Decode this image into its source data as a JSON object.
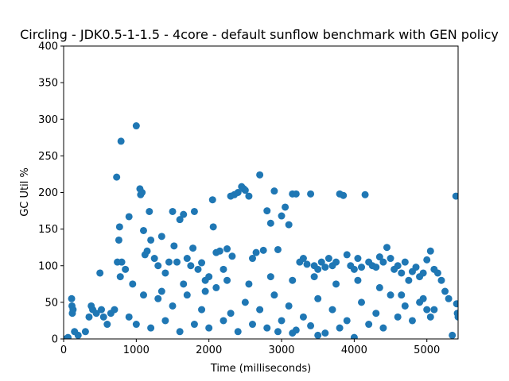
{
  "chart_data": {
    "type": "scatter",
    "title": "Circling - JDK0.5-1-1.5 - 4core -  default sunflow benchmark with GEN policy",
    "xlabel": "Time (milliseconds)",
    "ylabel": "GC Util %",
    "xlim": [
      0,
      5430
    ],
    "ylim": [
      0,
      400
    ],
    "x_ticks": [
      "0",
      "1000",
      "2000",
      "3000",
      "4000",
      "5000"
    ],
    "y_ticks": [
      "0",
      "50",
      "100",
      "150",
      "200",
      "250",
      "300",
      "350",
      "400"
    ],
    "grid": false,
    "legend": "none",
    "color": "#1f77b4",
    "series": [
      {
        "points": [
          [
            0,
            0
          ],
          [
            60,
            2
          ],
          [
            110,
            55
          ],
          [
            115,
            45
          ],
          [
            120,
            35
          ],
          [
            130,
            40
          ],
          [
            150,
            10
          ],
          [
            200,
            5
          ],
          [
            300,
            10
          ],
          [
            350,
            30
          ],
          [
            380,
            45
          ],
          [
            400,
            40
          ],
          [
            450,
            35
          ],
          [
            500,
            90
          ],
          [
            520,
            40
          ],
          [
            550,
            30
          ],
          [
            600,
            20
          ],
          [
            650,
            35
          ],
          [
            700,
            40
          ],
          [
            730,
            221
          ],
          [
            740,
            105
          ],
          [
            760,
            135
          ],
          [
            770,
            153
          ],
          [
            780,
            85
          ],
          [
            790,
            270
          ],
          [
            800,
            105
          ],
          [
            850,
            95
          ],
          [
            900,
            167
          ],
          [
            950,
            75
          ],
          [
            1000,
            291
          ],
          [
            1050,
            205
          ],
          [
            1060,
            197
          ],
          [
            1080,
            200
          ],
          [
            1100,
            148
          ],
          [
            1120,
            115
          ],
          [
            1150,
            120
          ],
          [
            1180,
            174
          ],
          [
            1200,
            135
          ],
          [
            1250,
            110
          ],
          [
            1300,
            100
          ],
          [
            1350,
            140
          ],
          [
            1400,
            90
          ],
          [
            1450,
            105
          ],
          [
            1500,
            174
          ],
          [
            1520,
            127
          ],
          [
            1560,
            105
          ],
          [
            1600,
            163
          ],
          [
            1650,
            170
          ],
          [
            1700,
            110
          ],
          [
            1750,
            100
          ],
          [
            1780,
            124
          ],
          [
            1800,
            174
          ],
          [
            1850,
            95
          ],
          [
            1900,
            104
          ],
          [
            1950,
            80
          ],
          [
            2000,
            85
          ],
          [
            2050,
            190
          ],
          [
            2060,
            153
          ],
          [
            2100,
            118
          ],
          [
            2150,
            120
          ],
          [
            2200,
            95
          ],
          [
            2250,
            123
          ],
          [
            2300,
            195
          ],
          [
            2320,
            113
          ],
          [
            2350,
            197
          ],
          [
            2400,
            200
          ],
          [
            2450,
            208
          ],
          [
            2480,
            205
          ],
          [
            2500,
            203
          ],
          [
            2550,
            195
          ],
          [
            2600,
            110
          ],
          [
            2650,
            118
          ],
          [
            2700,
            224
          ],
          [
            2750,
            121
          ],
          [
            2800,
            175
          ],
          [
            2850,
            158
          ],
          [
            2900,
            202
          ],
          [
            2950,
            122
          ],
          [
            3000,
            168
          ],
          [
            3050,
            180
          ],
          [
            3100,
            156
          ],
          [
            3150,
            198
          ],
          [
            3200,
            198
          ],
          [
            3250,
            105
          ],
          [
            3300,
            110
          ],
          [
            3350,
            102
          ],
          [
            3400,
            198
          ],
          [
            3450,
            100
          ],
          [
            3500,
            95
          ],
          [
            3550,
            105
          ],
          [
            3600,
            98
          ],
          [
            3650,
            110
          ],
          [
            3700,
            100
          ],
          [
            3750,
            105
          ],
          [
            3800,
            198
          ],
          [
            3850,
            196
          ],
          [
            3900,
            115
          ],
          [
            3950,
            100
          ],
          [
            4000,
            95
          ],
          [
            4050,
            110
          ],
          [
            4100,
            98
          ],
          [
            4150,
            197
          ],
          [
            4200,
            105
          ],
          [
            4250,
            100
          ],
          [
            4300,
            98
          ],
          [
            4350,
            112
          ],
          [
            4400,
            105
          ],
          [
            4450,
            125
          ],
          [
            4500,
            110
          ],
          [
            4550,
            95
          ],
          [
            4600,
            100
          ],
          [
            4650,
            90
          ],
          [
            4700,
            105
          ],
          [
            4750,
            80
          ],
          [
            4800,
            92
          ],
          [
            4850,
            98
          ],
          [
            4900,
            85
          ],
          [
            4950,
            90
          ],
          [
            5000,
            108
          ],
          [
            5050,
            120
          ],
          [
            5100,
            95
          ],
          [
            5150,
            90
          ],
          [
            5200,
            80
          ],
          [
            5250,
            65
          ],
          [
            5300,
            55
          ],
          [
            5350,
            5
          ],
          [
            5400,
            195
          ],
          [
            5410,
            48
          ],
          [
            5420,
            35
          ],
          [
            5430,
            30
          ],
          [
            1100,
            60
          ],
          [
            1300,
            55
          ],
          [
            1500,
            45
          ],
          [
            1700,
            60
          ],
          [
            1900,
            40
          ],
          [
            2100,
            70
          ],
          [
            2300,
            35
          ],
          [
            2500,
            50
          ],
          [
            2700,
            40
          ],
          [
            2900,
            60
          ],
          [
            3100,
            45
          ],
          [
            3300,
            30
          ],
          [
            3500,
            55
          ],
          [
            3700,
            40
          ],
          [
            3900,
            25
          ],
          [
            4100,
            50
          ],
          [
            4300,
            35
          ],
          [
            4500,
            60
          ],
          [
            4700,
            45
          ],
          [
            4900,
            50
          ],
          [
            5100,
            40
          ],
          [
            900,
            30
          ],
          [
            1000,
            20
          ],
          [
            1200,
            15
          ],
          [
            1400,
            25
          ],
          [
            1600,
            10
          ],
          [
            1800,
            20
          ],
          [
            2000,
            15
          ],
          [
            2200,
            25
          ],
          [
            2400,
            10
          ],
          [
            2600,
            20
          ],
          [
            2800,
            15
          ],
          [
            3000,
            25
          ],
          [
            3200,
            12
          ],
          [
            3400,
            18
          ],
          [
            3600,
            8
          ],
          [
            3800,
            15
          ],
          [
            4000,
            2
          ],
          [
            4200,
            20
          ],
          [
            4400,
            15
          ],
          [
            4600,
            30
          ],
          [
            4800,
            25
          ],
          [
            5000,
            40
          ],
          [
            5050,
            30
          ],
          [
            3500,
            5
          ],
          [
            3150,
            8
          ],
          [
            2950,
            10
          ],
          [
            1350,
            65
          ],
          [
            1650,
            75
          ],
          [
            1950,
            65
          ],
          [
            2250,
            80
          ],
          [
            2550,
            75
          ],
          [
            2850,
            85
          ],
          [
            3150,
            80
          ],
          [
            3450,
            85
          ],
          [
            3750,
            75
          ],
          [
            4050,
            80
          ],
          [
            4350,
            70
          ],
          [
            4650,
            60
          ],
          [
            4950,
            55
          ]
        ]
      }
    ]
  }
}
